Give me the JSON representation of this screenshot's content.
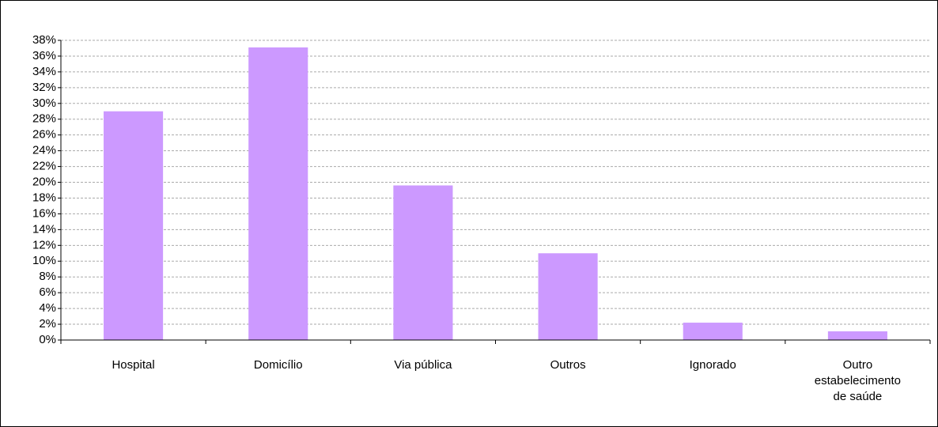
{
  "chart_data": {
    "type": "bar",
    "categories": [
      "Hospital",
      "Domicílio",
      "Via pública",
      "Outros",
      "Ignorado",
      "Outro estabelecimento de saúde"
    ],
    "values": [
      29,
      37.1,
      19.6,
      11,
      2.2,
      1.1
    ],
    "color": "#cc99ff",
    "ylim": [
      0,
      38
    ],
    "yticks": [
      {
        "value": 0,
        "label": "0%"
      },
      {
        "value": 2,
        "label": "2%"
      },
      {
        "value": 4,
        "label": "4%"
      },
      {
        "value": 6,
        "label": "6%"
      },
      {
        "value": 8,
        "label": "8%"
      },
      {
        "value": 10,
        "label": "10%"
      },
      {
        "value": 12,
        "label": "12%"
      },
      {
        "value": 14,
        "label": "14%"
      },
      {
        "value": 16,
        "label": "16%"
      },
      {
        "value": 18,
        "label": "18%"
      },
      {
        "value": 20,
        "label": "20%"
      },
      {
        "value": 22,
        "label": "22%"
      },
      {
        "value": 24,
        "label": "24%"
      },
      {
        "value": 26,
        "label": "26%"
      },
      {
        "value": 28,
        "label": "28%"
      },
      {
        "value": 30,
        "label": "30%"
      },
      {
        "value": 32,
        "label": "32%"
      },
      {
        "value": 34,
        "label": "34%"
      },
      {
        "value": 36,
        "label": "36%"
      },
      {
        "value": 38,
        "label": "38%"
      }
    ],
    "grid": true
  }
}
